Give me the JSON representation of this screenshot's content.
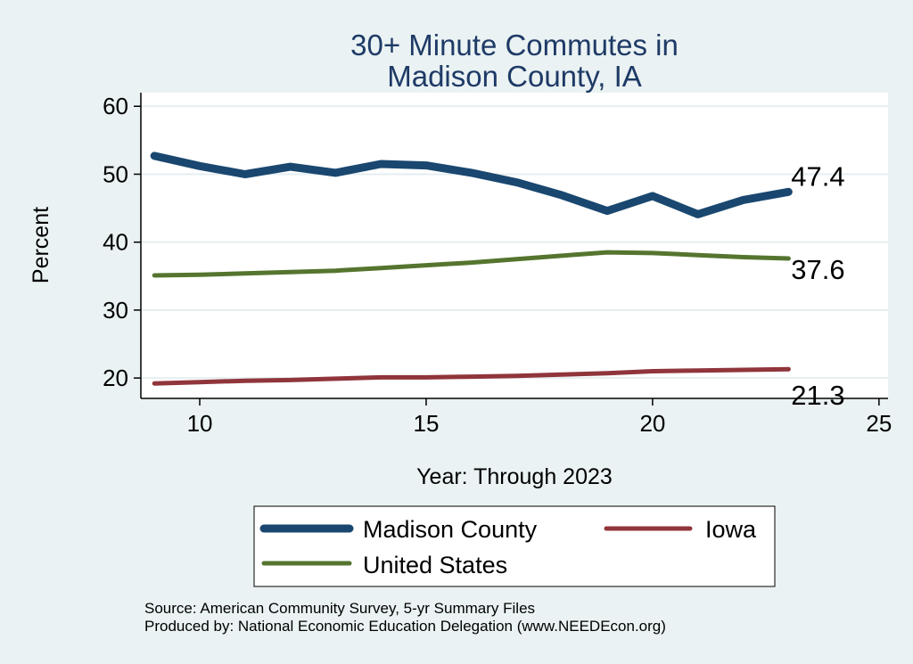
{
  "chart_data": {
    "type": "line",
    "title_lines": [
      "30+ Minute Commutes in",
      "Madison County, IA"
    ],
    "xlabel": "Year: Through 2023",
    "ylabel": "Percent",
    "xlim": [
      8.7,
      25.2
    ],
    "ylim": [
      17,
      62
    ],
    "xticks": [
      10,
      15,
      20,
      25
    ],
    "yticks": [
      20,
      30,
      40,
      50,
      60
    ],
    "grid": true,
    "legend_position": "bottom",
    "x": [
      9,
      10,
      11,
      12,
      13,
      14,
      15,
      16,
      17,
      18,
      19,
      20,
      21,
      22,
      23
    ],
    "series": [
      {
        "name": "Madison County",
        "color": "#1a476f",
        "values": [
          52.7,
          51.2,
          50.0,
          51.1,
          50.2,
          51.5,
          51.3,
          50.2,
          48.8,
          46.9,
          44.6,
          46.8,
          44.1,
          46.2,
          47.4
        ],
        "end_label": "47.4"
      },
      {
        "name": "United States",
        "color": "#55752f",
        "values": [
          35.1,
          35.2,
          35.4,
          35.6,
          35.8,
          36.2,
          36.6,
          37.0,
          37.5,
          38.0,
          38.5,
          38.4,
          38.1,
          37.8,
          37.6
        ],
        "end_label": "37.6"
      },
      {
        "name": "Iowa",
        "color": "#90353b",
        "values": [
          19.2,
          19.4,
          19.6,
          19.7,
          19.9,
          20.1,
          20.1,
          20.2,
          20.3,
          20.5,
          20.7,
          21.0,
          21.1,
          21.2,
          21.3
        ],
        "end_label": "21.3"
      }
    ],
    "legend_entries": [
      {
        "name": "Madison County",
        "color": "#1a476f"
      },
      {
        "name": "Iowa",
        "color": "#90353b"
      },
      {
        "name": "United States",
        "color": "#55752f"
      }
    ],
    "notes": [
      "Source: American Community Survey, 5-yr Summary Files",
      "Produced by: National Economic Education Delegation (www.NEEDEcon.org)"
    ]
  }
}
